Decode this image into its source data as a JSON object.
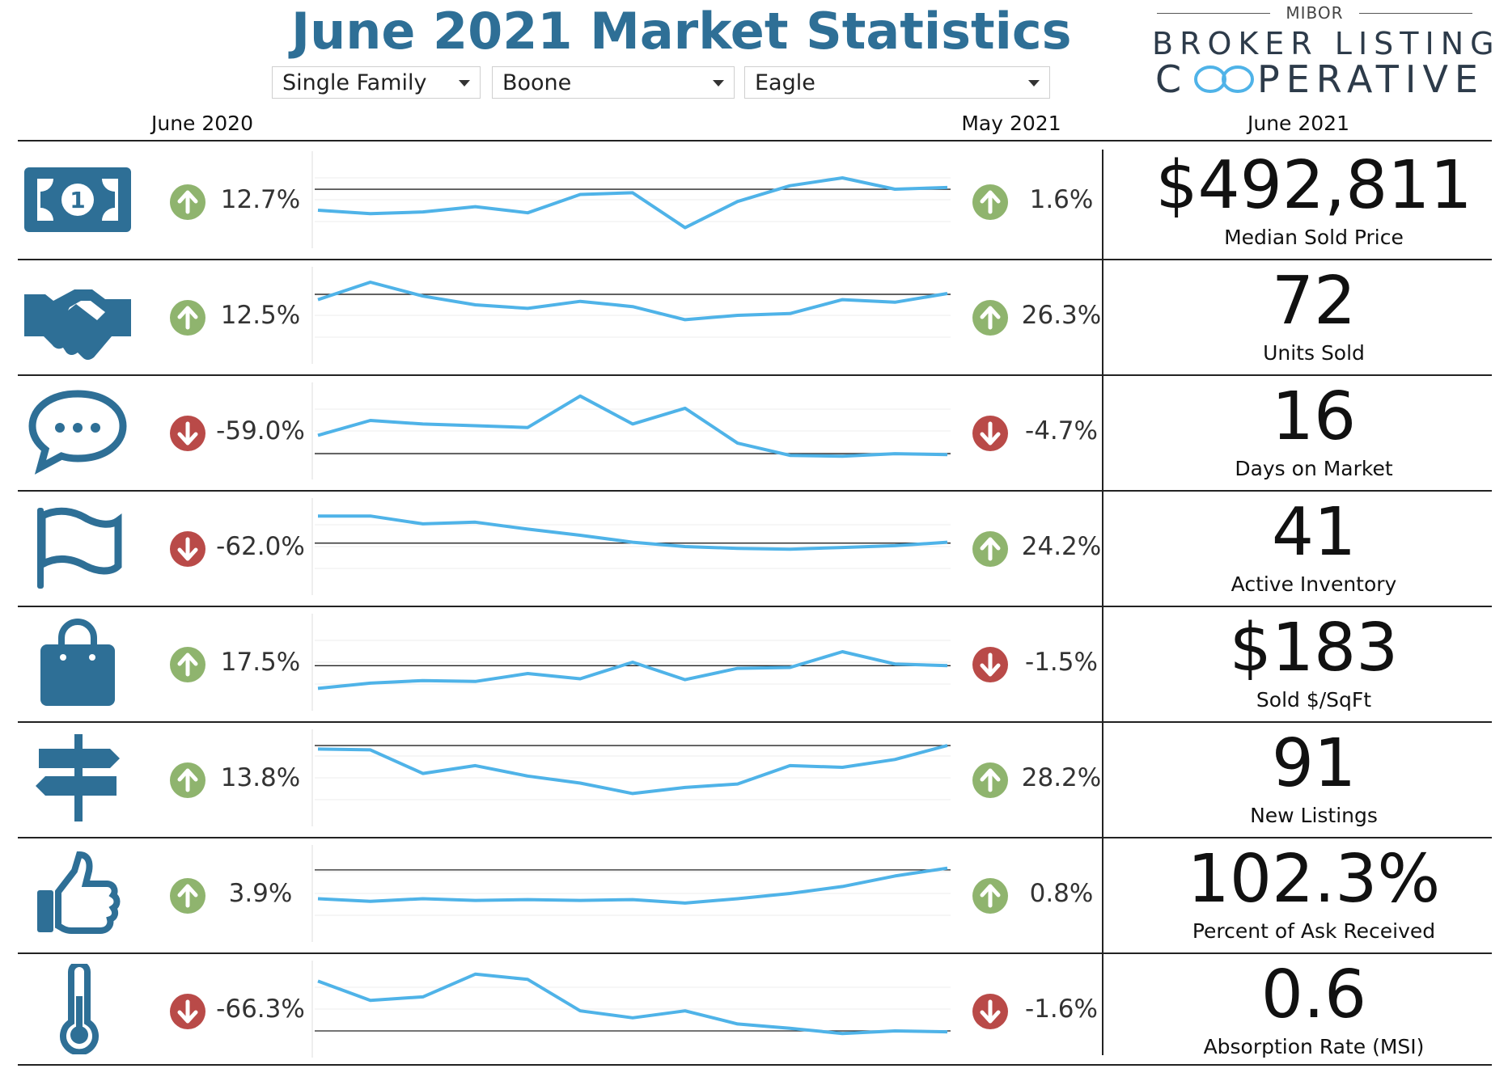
{
  "header": {
    "title": "June 2021 Market Statistics",
    "filters": [
      {
        "label": "Single Family"
      },
      {
        "label": "Boone"
      },
      {
        "label": "Eagle"
      }
    ]
  },
  "logo": {
    "top": "MIBOR",
    "line1": "BROKER LISTING",
    "line2": "COOPERATIVE"
  },
  "columns": {
    "left": "June 2020",
    "middle": "May 2021",
    "right": "June 2021"
  },
  "colors": {
    "accent": "#2e6f96",
    "spark": "#4fb3e8",
    "up": "#8fb46e",
    "down": "#b94a48"
  },
  "rows": [
    {
      "icon": "dollar-bill-icon",
      "yoy_dir": "up",
      "yoy": "12.7%",
      "mom_dir": "up",
      "mom": "1.6%",
      "value": "$492,811",
      "label": "Median Sold Price",
      "spark": [
        0.38,
        0.34,
        0.36,
        0.42,
        0.35,
        0.56,
        0.58,
        0.18,
        0.48,
        0.66,
        0.75,
        0.62,
        0.64
      ],
      "ref": 0.62
    },
    {
      "icon": "handshake-icon",
      "yoy_dir": "up",
      "yoy": "12.5%",
      "mom_dir": "up",
      "mom": "26.3%",
      "value": "72",
      "label": "Units Sold",
      "spark": [
        0.68,
        0.88,
        0.72,
        0.62,
        0.58,
        0.66,
        0.6,
        0.45,
        0.5,
        0.52,
        0.68,
        0.65,
        0.75
      ],
      "ref": 0.74
    },
    {
      "icon": "chat-bubble-icon",
      "yoy_dir": "down",
      "yoy": "-59.0%",
      "mom_dir": "down",
      "mom": "-4.7%",
      "value": "16",
      "label": "Days on Market",
      "spark": [
        0.45,
        0.62,
        0.58,
        0.56,
        0.54,
        0.9,
        0.58,
        0.76,
        0.36,
        0.22,
        0.21,
        0.24,
        0.23
      ],
      "ref": 0.24
    },
    {
      "icon": "flag-icon",
      "yoy_dir": "down",
      "yoy": "-62.0%",
      "mom_dir": "up",
      "mom": "24.2%",
      "value": "41",
      "label": "Active Inventory",
      "spark": [
        0.85,
        0.85,
        0.76,
        0.78,
        0.7,
        0.63,
        0.55,
        0.5,
        0.48,
        0.47,
        0.49,
        0.51,
        0.55
      ],
      "ref": 0.54
    },
    {
      "icon": "shopping-bag-icon",
      "yoy_dir": "up",
      "yoy": "17.5%",
      "mom_dir": "down",
      "mom": "-1.5%",
      "value": "$183",
      "label": "Sold $/SqFt",
      "spark": [
        0.2,
        0.26,
        0.29,
        0.28,
        0.37,
        0.31,
        0.5,
        0.3,
        0.43,
        0.44,
        0.62,
        0.48,
        0.46
      ],
      "ref": 0.46
    },
    {
      "icon": "signpost-icon",
      "yoy_dir": "up",
      "yoy": "13.8%",
      "mom_dir": "up",
      "mom": "28.2%",
      "value": "91",
      "label": "New Listings",
      "spark": [
        0.83,
        0.82,
        0.55,
        0.64,
        0.52,
        0.44,
        0.32,
        0.39,
        0.43,
        0.64,
        0.62,
        0.71,
        0.87
      ],
      "ref": 0.87
    },
    {
      "icon": "thumbs-up-icon",
      "yoy_dir": "up",
      "yoy": "3.9%",
      "mom_dir": "up",
      "mom": "0.8%",
      "value": "102.3%",
      "label": "Percent of Ask Received",
      "spark": [
        0.44,
        0.41,
        0.44,
        0.42,
        0.43,
        0.42,
        0.43,
        0.39,
        0.44,
        0.5,
        0.58,
        0.7,
        0.79
      ],
      "ref": 0.77
    },
    {
      "icon": "thermometer-icon",
      "yoy_dir": "down",
      "yoy": "-66.3%",
      "mom_dir": "down",
      "mom": "-1.6%",
      "value": "0.6",
      "label": "Absorption Rate (MSI)",
      "spark": [
        0.82,
        0.6,
        0.64,
        0.9,
        0.84,
        0.48,
        0.4,
        0.48,
        0.33,
        0.28,
        0.22,
        0.25,
        0.24
      ],
      "ref": 0.25
    }
  ]
}
